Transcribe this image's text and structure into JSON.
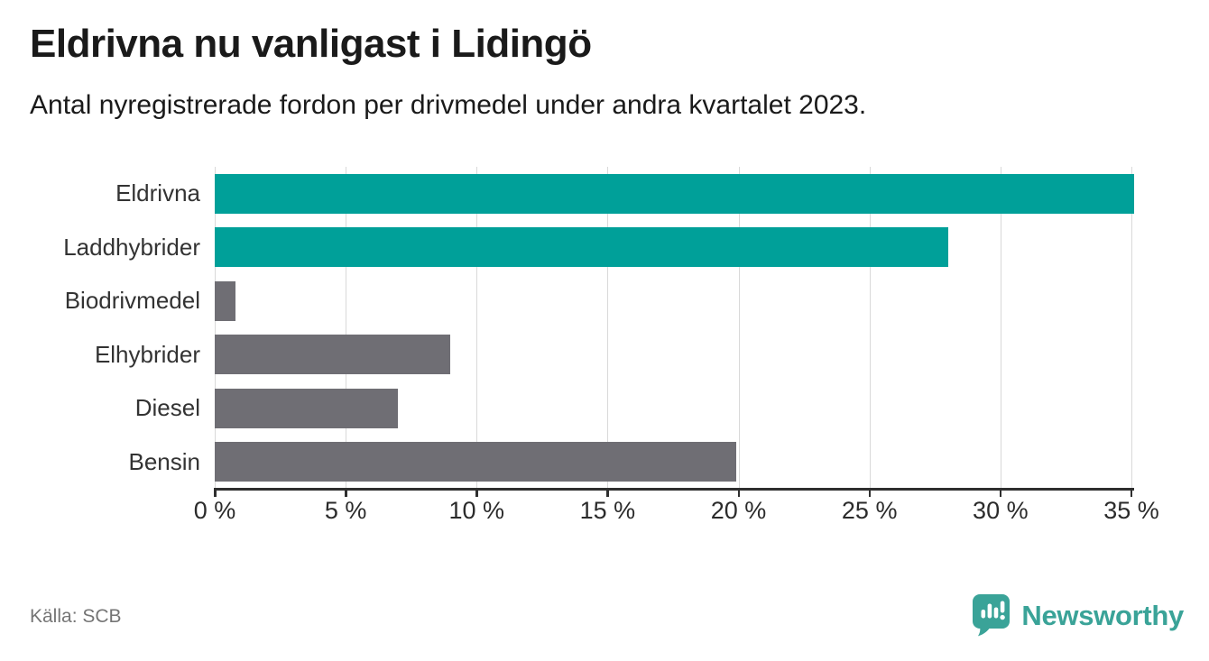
{
  "header": {
    "title": "Eldrivna nu vanligast i Lidingö",
    "subtitle": "Antal nyregistrerade fordon per drivmedel under andra kvartalet 2023."
  },
  "chart_data": {
    "type": "bar",
    "orientation": "horizontal",
    "title": "Eldrivna nu vanligast i Lidingö",
    "subtitle": "Antal nyregistrerade fordon per drivmedel under andra kvartalet 2023.",
    "categories": [
      "Eldrivna",
      "Laddhybrider",
      "Biodrivmedel",
      "Elhybrider",
      "Diesel",
      "Bensin"
    ],
    "values": [
      35.1,
      28.0,
      0.8,
      9.0,
      7.0,
      19.9
    ],
    "unit": "%",
    "bar_colors": [
      "#00a099",
      "#00a099",
      "#6f6e74",
      "#6f6e74",
      "#6f6e74",
      "#6f6e74"
    ],
    "accent_color": "#00a099",
    "default_color": "#6f6e74",
    "x_ticks": [
      {
        "value": 0,
        "label": "0 %"
      },
      {
        "value": 5,
        "label": "5 %"
      },
      {
        "value": 10,
        "label": "10 %"
      },
      {
        "value": 15,
        "label": "15 %"
      },
      {
        "value": 20,
        "label": "20 %"
      },
      {
        "value": 25,
        "label": "25 %"
      },
      {
        "value": 30,
        "label": "30 %"
      },
      {
        "value": 35,
        "label": "35 %"
      }
    ],
    "xlim": [
      0,
      36
    ],
    "ylabel": "",
    "xlabel": "",
    "grid": "vertical",
    "gridline_color": "#d9d9d9",
    "axis_color": "#2f2f2f",
    "legend": null
  },
  "footer": {
    "source": "Källa: SCB",
    "brand": {
      "name": "Newsworthy",
      "color": "#3aa398",
      "icon": "newsworthy-speech-bubble-chart-icon"
    }
  }
}
